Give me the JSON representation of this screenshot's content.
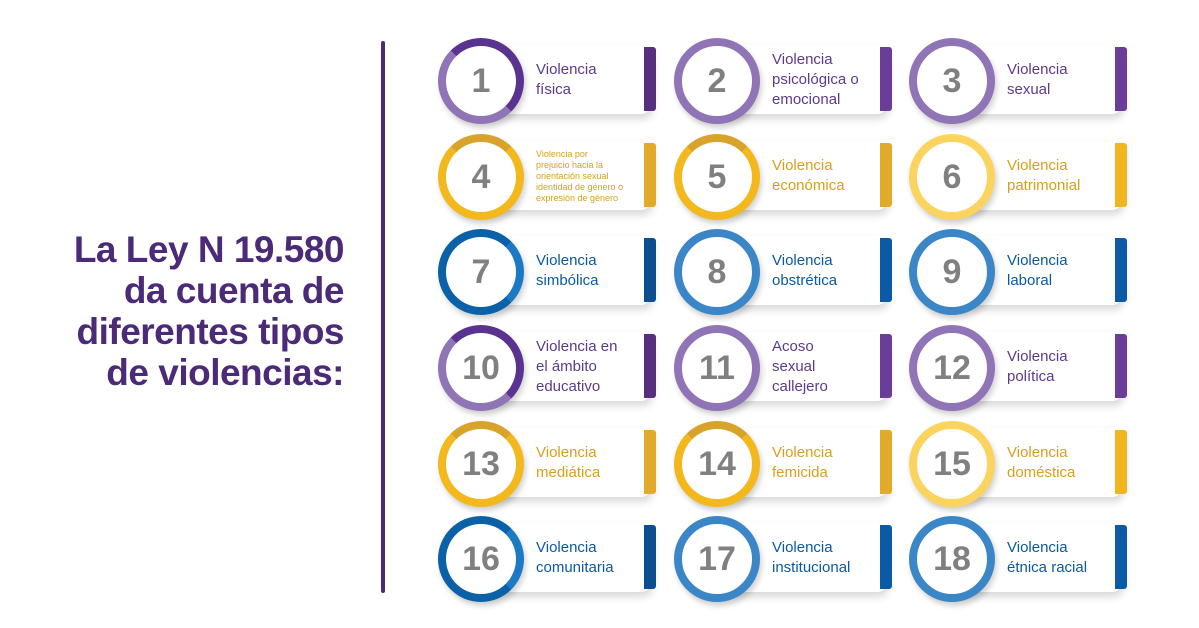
{
  "headline": {
    "line1": "La Ley N 19.580",
    "line2": "da cuenta de",
    "line3": "diferentes tipos",
    "line4": "de violencias:"
  },
  "cards": [
    {
      "number": "1",
      "lines": [
        "Violencia",
        "física"
      ]
    },
    {
      "number": "2",
      "lines": [
        "Violencia",
        "psicológica o",
        "emocional"
      ]
    },
    {
      "number": "3",
      "lines": [
        "Violencia",
        "sexual"
      ]
    },
    {
      "number": "4",
      "lines": [
        "Violencia por",
        "prejuicio hacia la",
        "orientación sexual",
        "identidad de género o",
        "expresión de género"
      ]
    },
    {
      "number": "5",
      "lines": [
        "Violencia",
        "económica"
      ]
    },
    {
      "number": "6",
      "lines": [
        "Violencia",
        "patrimonial"
      ]
    },
    {
      "number": "7",
      "lines": [
        "Violencia",
        "simbólica"
      ]
    },
    {
      "number": "8",
      "lines": [
        "Violencia",
        "obstrética"
      ]
    },
    {
      "number": "9",
      "lines": [
        "Violencia",
        "laboral"
      ]
    },
    {
      "number": "10",
      "lines": [
        "Violencia en",
        "el ámbito",
        "educativo"
      ]
    },
    {
      "number": "11",
      "lines": [
        "Acoso",
        "sexual",
        "callejero"
      ]
    },
    {
      "number": "12",
      "lines": [
        "Violencia",
        "política"
      ]
    },
    {
      "number": "13",
      "lines": [
        "Violencia",
        "mediática"
      ]
    },
    {
      "number": "14",
      "lines": [
        "Violencia",
        "femicida"
      ]
    },
    {
      "number": "15",
      "lines": [
        "Violencia",
        "doméstica"
      ]
    },
    {
      "number": "16",
      "lines": [
        "Violencia",
        "comunitaria"
      ]
    },
    {
      "number": "17",
      "lines": [
        "Violencia",
        "institucional"
      ]
    },
    {
      "number": "18",
      "lines": [
        "Violencia",
        "étnica racial"
      ]
    }
  ],
  "colors": {
    "headline": "#4b2a78",
    "purple": "#8f74b6",
    "gold": "#f3b81b",
    "blue": "#0b61a8",
    "number": "#808080"
  }
}
